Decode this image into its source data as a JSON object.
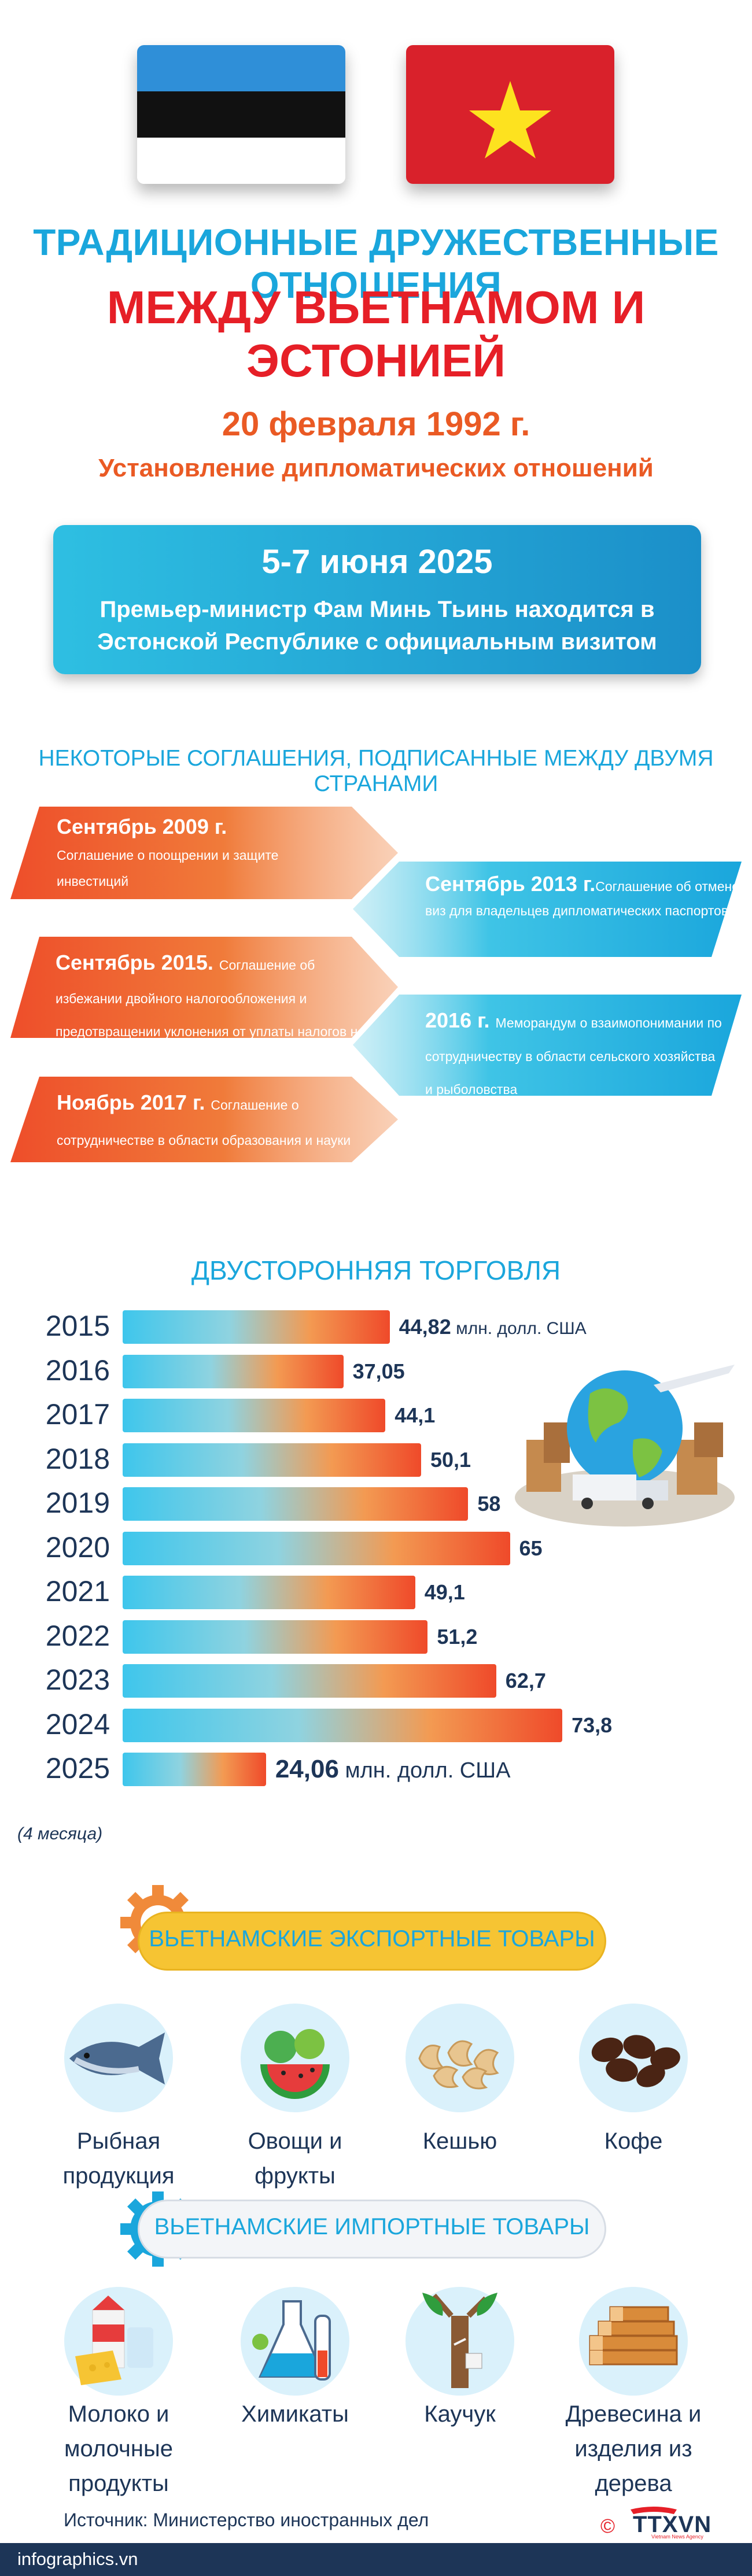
{
  "header": {
    "title_line1": "ТРАДИЦИОННЫЕ ДРУЖЕСТВЕННЫЕ ОТНОШЕНИЯ",
    "title_line2": "МЕЖДУ ВЬЕТНАМОМ И ЭСТОНИЕЙ",
    "flags": [
      "estonia-flag",
      "vietnam-flag"
    ]
  },
  "relations": {
    "date": "20 февраля 1992 г.",
    "description": "Установление дипломатических отношений"
  },
  "visit": {
    "date": "5-7 июня 2025",
    "description": "Премьер-министр Фам Минь Тьинь находится в Эстонской Республике с официальным визитом"
  },
  "agreements": {
    "heading": "НЕКОТОРЫЕ СОГЛАШЕНИЯ, ПОДПИСАННЫЕ МЕЖДУ ДВУМЯ СТРАНАМИ",
    "items": [
      {
        "date": "Сентябрь 2009 г.",
        "text": "Соглашение о поощрении и защите инвестиций"
      },
      {
        "date": "Сентябрь 2013 г.",
        "text": "Соглашение об отмене виз для владельцев дипломатических паспортов"
      },
      {
        "date": "Сентябрь 2015.",
        "text": "Соглашение об избежании двойного налогообложения и предотвращении уклонения от уплаты налогов на доходы"
      },
      {
        "date": "2016 г.",
        "text": "Меморандум о взаимопонимании по сотрудничеству в области сельского хозяйства и рыболовства"
      },
      {
        "date": "Ноябрь 2017 г.",
        "text": "Соглашение о сотрудничестве в области образования и науки"
      }
    ]
  },
  "trade": {
    "heading": "ДВУСТОРОННЯЯ ТОРГОВЛЯ",
    "unit": "млн. долл. США",
    "note": "(4 месяца)",
    "labels": [
      "44,82",
      "37,05",
      "44,1",
      "50,1",
      "58",
      "65",
      "49,1",
      "51,2",
      "62,7",
      "73,8",
      "24,06"
    ]
  },
  "chart_data": {
    "type": "bar",
    "title": "ДВУСТОРОННЯЯ ТОРГОВЛЯ",
    "orientation": "horizontal",
    "categories": [
      "2015",
      "2016",
      "2017",
      "2018",
      "2019",
      "2020",
      "2021",
      "2022",
      "2023",
      "2024",
      "2025"
    ],
    "values": [
      44.82,
      37.05,
      44.1,
      50.1,
      58,
      65,
      49.1,
      51.2,
      62.7,
      73.8,
      24.06
    ],
    "unit": "млн. долл. США",
    "annotations": [
      "(4 месяца)"
    ],
    "grid": false,
    "legend": "none"
  },
  "exports": {
    "heading": "ВЬЕТНАМСКИЕ ЭКСПОРТНЫЕ ТОВАРЫ",
    "items": [
      {
        "label": "Рыбная продукция",
        "icon": "fish-icon"
      },
      {
        "label": "Овощи и фрукты",
        "icon": "vegetables-icon"
      },
      {
        "label": "Кешью",
        "icon": "cashew-icon"
      },
      {
        "label": "Кофе",
        "icon": "coffee-icon"
      }
    ]
  },
  "imports": {
    "heading": "ВЬЕТНАМСКИЕ ИМПОРТНЫЕ ТОВАРЫ",
    "items": [
      {
        "label": "Молоко и молочные продукты",
        "icon": "dairy-icon"
      },
      {
        "label": "Химикаты",
        "icon": "chemicals-icon"
      },
      {
        "label": "Каучук",
        "icon": "rubber-tree-icon"
      },
      {
        "label": "Древесина и изделия из дерева",
        "icon": "wood-icon"
      }
    ]
  },
  "footer": {
    "source": "Источник: Министерство иностранных дел",
    "site": "infographics.vn",
    "copyright": "©",
    "logo_text": "TTXVN",
    "logo_sub": "Vietnam News Agency"
  },
  "colors": {
    "blue": "#1aa6dc",
    "red": "#e61f27",
    "orange": "#ea5a24",
    "navy": "#1d3557",
    "yellow": "#f6c433"
  }
}
